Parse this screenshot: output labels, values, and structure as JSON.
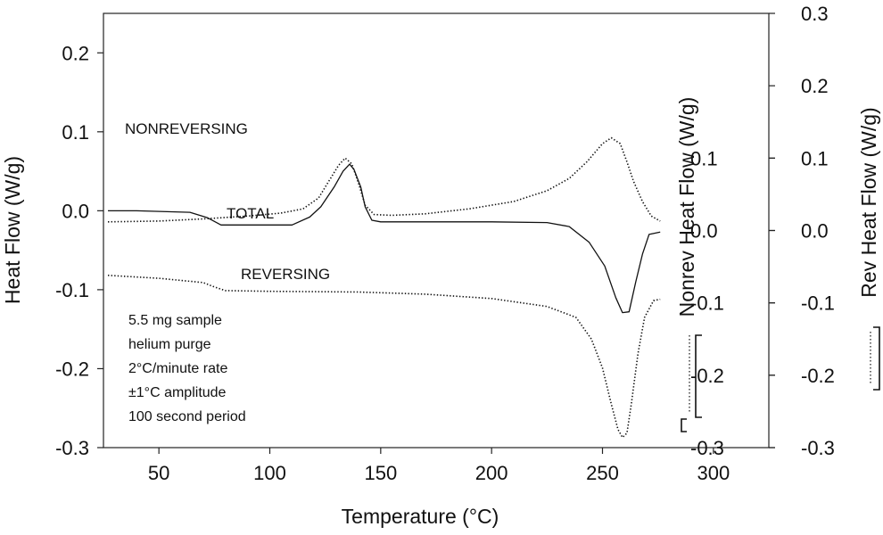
{
  "chart_data": {
    "type": "line",
    "xlabel": "Temperature (°C)",
    "xlim": [
      25,
      325
    ],
    "x_ticks": [
      50,
      100,
      150,
      200,
      250,
      300
    ],
    "axes": {
      "left": {
        "label": "Heat Flow (W/g)",
        "range": [
          -0.3,
          0.25
        ],
        "ticks": [
          "0.2",
          "0.1",
          "0.0",
          "-0.1",
          "-0.2",
          "-0.3"
        ]
      },
      "right_inner": {
        "label": "Nonrev Heat Flow (W/g)",
        "range": [
          -0.3,
          0.3
        ],
        "ticks": [
          "0.1",
          "0.0",
          "-0.1",
          "-0.2",
          "-0.3"
        ]
      },
      "right_outer": {
        "label": "Rev Heat Flow (W/g)",
        "range": [
          -0.3,
          0.3
        ],
        "ticks": [
          "0.3",
          "0.2",
          "0.1",
          "0.0",
          "-0.1",
          "-0.2",
          "-0.3"
        ]
      }
    },
    "series": [
      {
        "name": "NONREVERSING",
        "axis": "right_inner",
        "style": "dotted",
        "points": [
          [
            27,
            0.012
          ],
          [
            50,
            0.013
          ],
          [
            70,
            0.016
          ],
          [
            90,
            0.02
          ],
          [
            105,
            0.024
          ],
          [
            115,
            0.03
          ],
          [
            122,
            0.045
          ],
          [
            127,
            0.07
          ],
          [
            131,
            0.09
          ],
          [
            134,
            0.1
          ],
          [
            137,
            0.092
          ],
          [
            140,
            0.065
          ],
          [
            143,
            0.035
          ],
          [
            147,
            0.022
          ],
          [
            155,
            0.021
          ],
          [
            170,
            0.023
          ],
          [
            190,
            0.03
          ],
          [
            210,
            0.04
          ],
          [
            225,
            0.055
          ],
          [
            235,
            0.072
          ],
          [
            243,
            0.095
          ],
          [
            250,
            0.12
          ],
          [
            254,
            0.128
          ],
          [
            258,
            0.12
          ],
          [
            261,
            0.095
          ],
          [
            264,
            0.068
          ],
          [
            268,
            0.04
          ],
          [
            272,
            0.02
          ],
          [
            276,
            0.013
          ]
        ]
      },
      {
        "name": "TOTAL",
        "axis": "left",
        "style": "solid",
        "points": [
          [
            27,
            0.0
          ],
          [
            40,
            0.0
          ],
          [
            64,
            -0.002
          ],
          [
            72,
            -0.009
          ],
          [
            78,
            -0.018
          ],
          [
            90,
            -0.018
          ],
          [
            110,
            -0.018
          ],
          [
            118,
            -0.008
          ],
          [
            123,
            0.005
          ],
          [
            129,
            0.03
          ],
          [
            133,
            0.05
          ],
          [
            136,
            0.059
          ],
          [
            138,
            0.052
          ],
          [
            141,
            0.03
          ],
          [
            143,
            0.005
          ],
          [
            146,
            -0.012
          ],
          [
            150,
            -0.014
          ],
          [
            175,
            -0.014
          ],
          [
            200,
            -0.014
          ],
          [
            225,
            -0.015
          ],
          [
            235,
            -0.02
          ],
          [
            244,
            -0.04
          ],
          [
            251,
            -0.07
          ],
          [
            256,
            -0.11
          ],
          [
            259,
            -0.129
          ],
          [
            262,
            -0.128
          ],
          [
            265,
            -0.09
          ],
          [
            268,
            -0.055
          ],
          [
            271,
            -0.03
          ],
          [
            276,
            -0.027
          ]
        ]
      },
      {
        "name": "REVERSING",
        "axis": "right_outer",
        "style": "dotted",
        "points": [
          [
            27,
            -0.062
          ],
          [
            50,
            -0.066
          ],
          [
            70,
            -0.072
          ],
          [
            75,
            -0.078
          ],
          [
            80,
            -0.083
          ],
          [
            100,
            -0.084
          ],
          [
            140,
            -0.085
          ],
          [
            170,
            -0.088
          ],
          [
            200,
            -0.094
          ],
          [
            225,
            -0.105
          ],
          [
            238,
            -0.12
          ],
          [
            245,
            -0.15
          ],
          [
            250,
            -0.19
          ],
          [
            254,
            -0.24
          ],
          [
            257,
            -0.275
          ],
          [
            259,
            -0.286
          ],
          [
            261,
            -0.28
          ],
          [
            263,
            -0.24
          ],
          [
            266,
            -0.17
          ],
          [
            269,
            -0.12
          ],
          [
            273,
            -0.097
          ],
          [
            276,
            -0.095
          ]
        ]
      }
    ],
    "annotations": [
      "5.5 mg sample",
      "helium purge",
      "2°C/minute rate",
      "±1°C amplitude",
      "100 second period"
    ],
    "grid": false,
    "legend": "none"
  }
}
